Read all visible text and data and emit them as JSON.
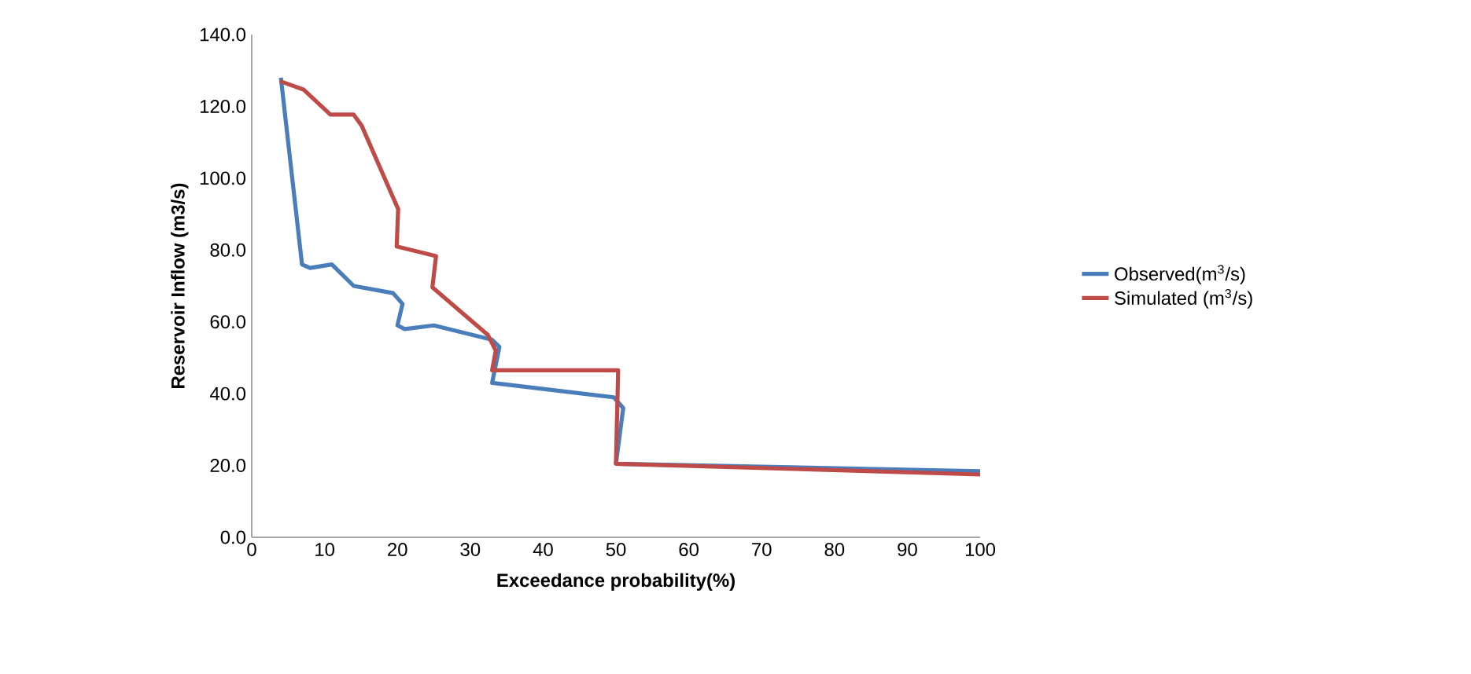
{
  "chart_data": {
    "type": "line",
    "xlabel": "Exceedance probability(%)",
    "ylabel": "Reservoir Inflow (m3/s)",
    "xlim": [
      0,
      100
    ],
    "ylim": [
      0,
      140
    ],
    "xticks": [
      0,
      10,
      20,
      30,
      40,
      50,
      60,
      70,
      80,
      90,
      100
    ],
    "yticks": [
      {
        "value": 0,
        "label": "0.0"
      },
      {
        "value": 20,
        "label": "20.0"
      },
      {
        "value": 40,
        "label": "40.0"
      },
      {
        "value": 60,
        "label": "60.0"
      },
      {
        "value": 80,
        "label": "80.0"
      },
      {
        "value": 100,
        "label": "100.0"
      },
      {
        "value": 120,
        "label": "120.0"
      },
      {
        "value": 140,
        "label": "140.0"
      }
    ],
    "legend": "right",
    "grid": false,
    "marker": "none",
    "line_style": "solid",
    "series": [
      {
        "name": "Observed(m$^{3}$/s)",
        "color": "#4a7ebb",
        "x": [
          4,
          6.9,
          8,
          11,
          14,
          19.4,
          20.7,
          20,
          21,
          25,
          33,
          34,
          33,
          49.7,
          51,
          50,
          100
        ],
        "values": [
          128,
          76,
          75,
          76,
          70,
          68,
          65,
          59,
          58,
          59,
          55,
          53,
          43,
          39,
          36,
          20.5,
          18.4
        ]
      },
      {
        "name": "Simulated (m$^{3}$/s)",
        "color": "#be4b48",
        "x": [
          3.9,
          7.1,
          10.8,
          14,
          15.1,
          20.1,
          19.9,
          25.3,
          24.8,
          32.4,
          33.5,
          33,
          50.3,
          50,
          100
        ],
        "values": [
          127,
          124.7,
          117.7,
          117.7,
          114.6,
          91.4,
          81,
          78.3,
          69.6,
          56.4,
          52,
          46.5,
          46.5,
          20.5,
          17.5
        ]
      }
    ]
  }
}
